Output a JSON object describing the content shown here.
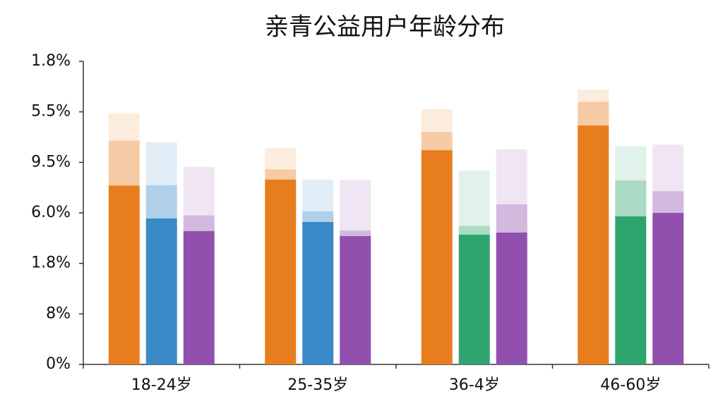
{
  "chart_data": {
    "type": "stacked-bar-groups",
    "title": "亲青公益用户年龄分布",
    "categories": [
      "18-24岁",
      "25-35岁",
      "36-4岁",
      "46-60岁"
    ],
    "ylim": [
      0,
      6
    ],
    "yticks": [
      {
        "value": 0,
        "label": "0%"
      },
      {
        "value": 1,
        "label": "8%"
      },
      {
        "value": 2,
        "label": "1.8%"
      },
      {
        "value": 3,
        "label": "6.0%"
      },
      {
        "value": 4,
        "label": "9.5%"
      },
      {
        "value": 5,
        "label": "5.5%"
      },
      {
        "value": 6,
        "label": "1.8%"
      }
    ],
    "series": [
      {
        "colors": [
          "#e87d1e",
          "#e87d1e",
          "#e87d1e",
          "#e87d1e"
        ],
        "layers": [
          {
            "values": [
              3.54,
              3.66,
              4.24,
              4.73
            ]
          },
          {
            "values": [
              0.89,
              0.2,
              0.36,
              0.47
            ]
          },
          {
            "values": [
              0.54,
              0.42,
              0.45,
              0.24
            ]
          }
        ]
      },
      {
        "colors": [
          "#3a8ac8",
          "#3a8ac8",
          "#2fa56e",
          "#2fa56e"
        ],
        "layers": [
          {
            "values": [
              2.89,
              2.82,
              2.57,
              2.93
            ]
          },
          {
            "values": [
              0.66,
              0.21,
              0.17,
              0.71
            ]
          },
          {
            "values": [
              0.85,
              0.63,
              1.1,
              0.68
            ]
          }
        ]
      },
      {
        "colors": [
          "#9150ad",
          "#9150ad",
          "#9150ad",
          "#9150ad"
        ],
        "layers": [
          {
            "values": [
              2.64,
              2.54,
              2.61,
              3.0
            ]
          },
          {
            "values": [
              0.31,
              0.11,
              0.56,
              0.43
            ]
          },
          {
            "values": [
              0.96,
              1.0,
              1.09,
              0.92
            ]
          }
        ]
      }
    ]
  }
}
